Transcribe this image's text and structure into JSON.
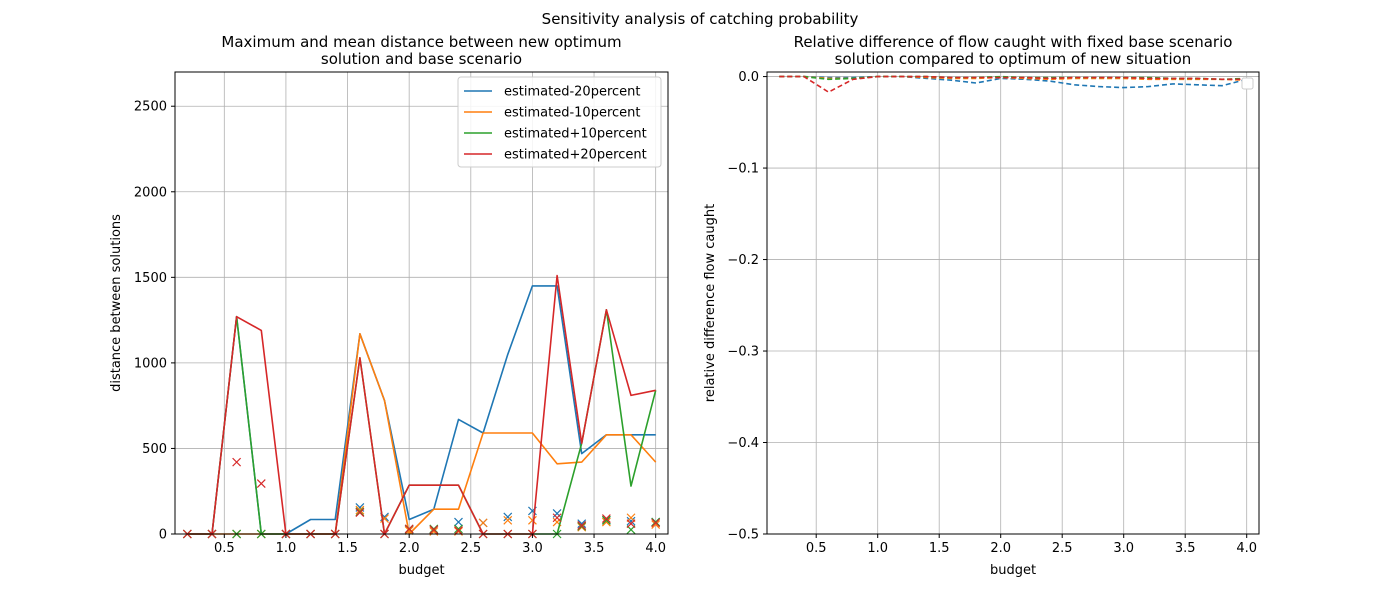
{
  "suptitle": "Sensitivity analysis of catching probability",
  "colors": {
    "estimated-20percent": "#1f77b4",
    "estimated-10percent": "#ff7f0e",
    "estimated+10percent": "#2ca02c",
    "estimated+20percent": "#d62728",
    "grid": "#b0b0b0"
  },
  "chart_data": [
    {
      "type": "line",
      "title_lines": [
        "Maximum and mean distance between new optimum",
        "solution and base scenario"
      ],
      "xlabel": "budget",
      "ylabel": "distance between solutions",
      "xlim": [
        0.1,
        4.1
      ],
      "ylim": [
        0,
        2700
      ],
      "xticks": [
        0.5,
        1.0,
        1.5,
        2.0,
        2.5,
        3.0,
        3.5,
        4.0
      ],
      "xtick_labels": [
        "0.5",
        "1.0",
        "1.5",
        "2.0",
        "2.5",
        "3.0",
        "3.5",
        "4.0"
      ],
      "yticks": [
        0,
        500,
        1000,
        1500,
        2000,
        2500
      ],
      "ytick_labels": [
        "0",
        "500",
        "1000",
        "1500",
        "2000",
        "2500"
      ],
      "grid": true,
      "legend_position": "upper-right",
      "x": [
        0.2,
        0.4,
        0.6,
        0.8,
        1.0,
        1.2,
        1.4,
        1.6,
        1.8,
        2.0,
        2.2,
        2.4,
        2.6,
        2.8,
        3.0,
        3.2,
        3.4,
        3.6,
        3.8,
        4.0
      ],
      "series": [
        {
          "name": "estimated-20percent",
          "max": [
            0,
            0,
            1270,
            0,
            0,
            85,
            85,
            1170,
            780,
            85,
            145,
            670,
            590,
            1050,
            1450,
            1450,
            470,
            580,
            580,
            580
          ],
          "mean": [
            0,
            0,
            0,
            0,
            0,
            0,
            0,
            155,
            100,
            25,
            25,
            70,
            65,
            100,
            135,
            120,
            60,
            80,
            75,
            70
          ]
        },
        {
          "name": "estimated-10percent",
          "max": [
            0,
            0,
            0,
            0,
            0,
            0,
            0,
            1170,
            780,
            0,
            145,
            145,
            590,
            590,
            590,
            410,
            420,
            580,
            580,
            420
          ],
          "mean": [
            0,
            0,
            0,
            0,
            0,
            0,
            0,
            140,
            90,
            20,
            15,
            15,
            65,
            80,
            80,
            70,
            40,
            70,
            95,
            55
          ]
        },
        {
          "name": "estimated+10percent",
          "max": [
            0,
            0,
            1270,
            0,
            0,
            0,
            0,
            1030,
            0,
            285,
            285,
            285,
            0,
            0,
            0,
            0,
            530,
            1310,
            280,
            840
          ],
          "mean": [
            0,
            0,
            0,
            0,
            0,
            0,
            0,
            130,
            0,
            30,
            30,
            30,
            0,
            0,
            0,
            0,
            45,
            80,
            25,
            70
          ]
        },
        {
          "name": "estimated+20percent",
          "max": [
            0,
            0,
            1270,
            1190,
            0,
            0,
            0,
            1030,
            0,
            285,
            285,
            285,
            0,
            0,
            0,
            1510,
            530,
            1310,
            810,
            840
          ],
          "mean": [
            0,
            0,
            420,
            295,
            0,
            0,
            0,
            125,
            0,
            30,
            25,
            20,
            0,
            0,
            0,
            95,
            50,
            90,
            60,
            65
          ]
        }
      ]
    },
    {
      "type": "line",
      "title_lines": [
        "Relative difference of flow caught with fixed base scenario",
        "solution compared to optimum of new situation"
      ],
      "xlabel": "budget",
      "ylabel": "relative difference flow caught",
      "xlim": [
        0.1,
        4.1
      ],
      "ylim": [
        -0.5,
        0.005
      ],
      "xticks": [
        0.5,
        1.0,
        1.5,
        2.0,
        2.5,
        3.0,
        3.5,
        4.0
      ],
      "xtick_labels": [
        "0.5",
        "1.0",
        "1.5",
        "2.0",
        "2.5",
        "3.0",
        "3.5",
        "4.0"
      ],
      "yticks": [
        0.0,
        -0.1,
        -0.2,
        -0.3,
        -0.4,
        -0.5
      ],
      "ytick_labels": [
        "0.0",
        "−0.1",
        "−0.2",
        "−0.3",
        "−0.4",
        "−0.5"
      ],
      "grid": true,
      "legend_position": "upper-right",
      "line_style": "dashed",
      "x": [
        0.2,
        0.4,
        0.6,
        0.8,
        1.0,
        1.2,
        1.4,
        1.6,
        1.8,
        2.0,
        2.2,
        2.4,
        2.6,
        2.8,
        3.0,
        3.2,
        3.4,
        3.6,
        3.8,
        4.0
      ],
      "series": [
        {
          "name": "estimated-20percent",
          "values": [
            0,
            0,
            -0.001,
            -0.001,
            0,
            0,
            -0.002,
            -0.004,
            -0.007,
            -0.002,
            -0.003,
            -0.005,
            -0.009,
            -0.011,
            -0.012,
            -0.011,
            -0.008,
            -0.009,
            -0.01,
            -0.003
          ]
        },
        {
          "name": "estimated-10percent",
          "values": [
            0,
            0,
            -0.002,
            -0.002,
            0,
            0,
            -0.001,
            -0.002,
            -0.002,
            -0.001,
            -0.002,
            -0.003,
            -0.002,
            -0.002,
            -0.002,
            -0.003,
            -0.003,
            -0.003,
            -0.003,
            -0.004
          ]
        },
        {
          "name": "estimated+10percent",
          "values": [
            0,
            0,
            -0.003,
            -0.002,
            0,
            0,
            0,
            -0.001,
            -0.001,
            0,
            -0.001,
            -0.001,
            -0.001,
            -0.001,
            -0.001,
            -0.001,
            -0.002,
            -0.002,
            -0.003,
            -0.002
          ]
        },
        {
          "name": "estimated+20percent",
          "values": [
            0,
            0,
            -0.017,
            -0.003,
            0,
            0,
            0,
            -0.001,
            -0.001,
            -0.001,
            -0.001,
            -0.002,
            -0.001,
            -0.001,
            -0.001,
            -0.002,
            -0.002,
            -0.002,
            -0.003,
            -0.003
          ]
        }
      ]
    }
  ]
}
